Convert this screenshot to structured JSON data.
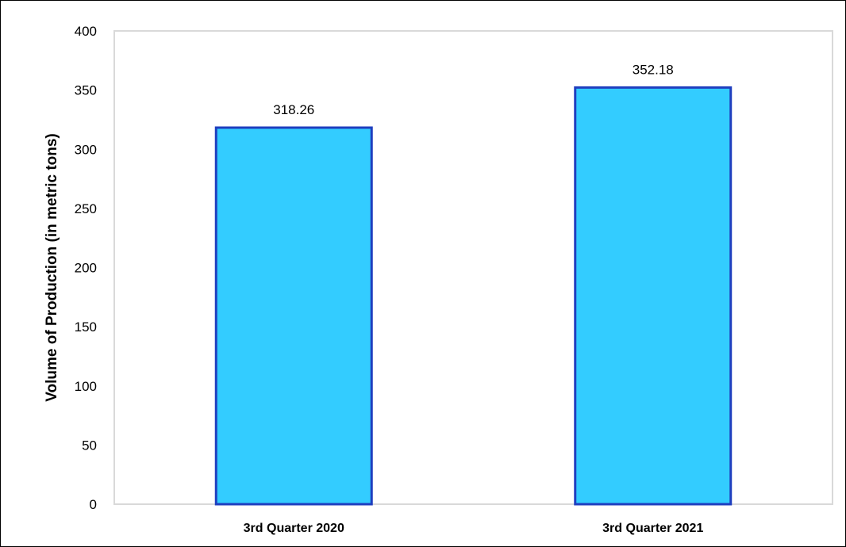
{
  "chart_data": {
    "type": "bar",
    "title": "",
    "xlabel": "",
    "ylabel": "Volume of Production (in metric tons)",
    "categories": [
      "3rd Quarter 2020",
      "3rd Quarter 2021"
    ],
    "values": [
      318.26,
      352.18
    ],
    "data_labels": [
      "318.26",
      "352.18"
    ],
    "ylim": [
      0,
      400
    ],
    "y_ticks": [
      0,
      50,
      100,
      150,
      200,
      250,
      300,
      350,
      400
    ],
    "grid": false,
    "legend": "none",
    "colors": {
      "bar_fill": "#33ccff",
      "bar_border": "#1f3fbf",
      "plot_border": "#d9d9d9",
      "text": "#000000"
    }
  }
}
